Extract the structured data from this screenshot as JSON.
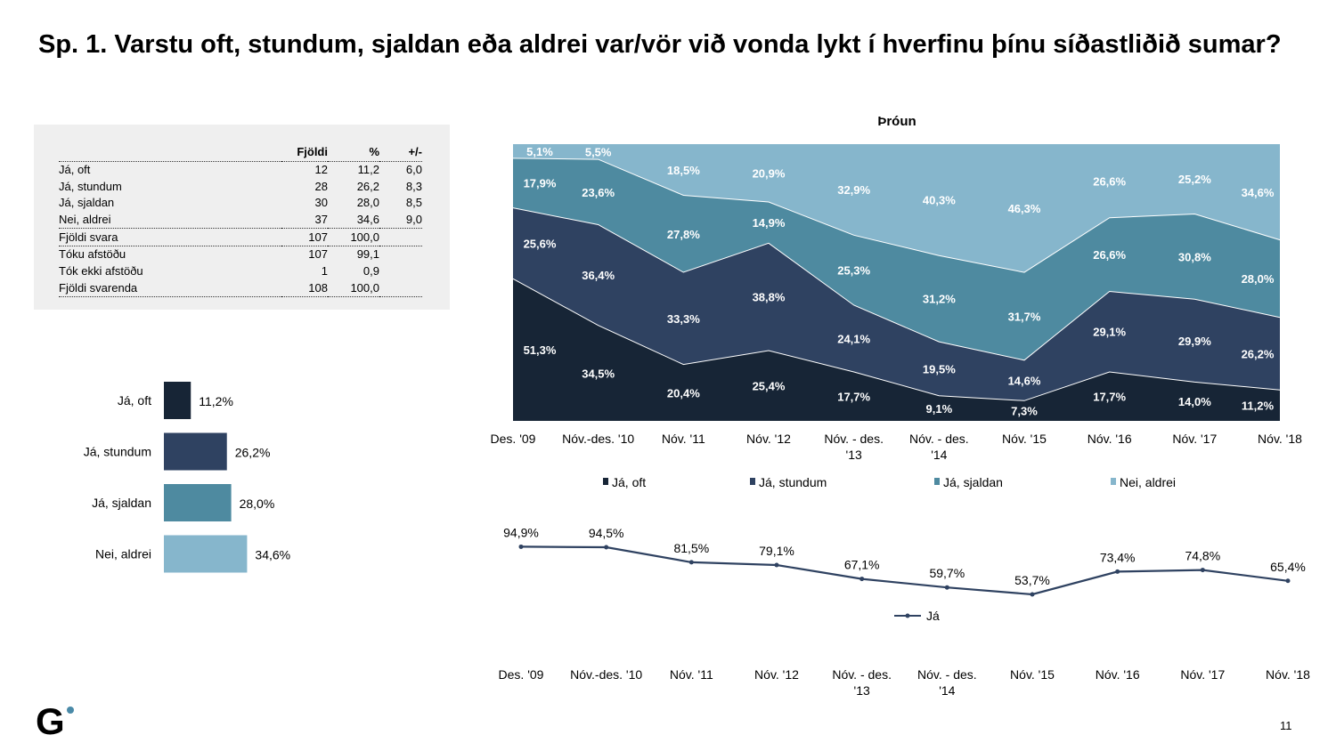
{
  "title": "Sp. 1. Varstu oft, stundum, sjaldan eða aldrei var/vör við vonda lykt í hverfinu þínu síðastliðið sumar?",
  "page_number": "11",
  "logo_text": "G",
  "colors": {
    "ja_oft": "#172536",
    "ja_stundum": "#2f4261",
    "ja_sjaldan": "#4e8aa0",
    "nei_aldrei": "#86b6cc",
    "line": "#2f4261"
  },
  "table": {
    "headers": [
      "",
      "Fjöldi",
      "%",
      "+/-"
    ],
    "rows": [
      [
        "Já, oft",
        "12",
        "11,2",
        "6,0"
      ],
      [
        "Já, stundum",
        "28",
        "26,2",
        "8,3"
      ],
      [
        "Já, sjaldan",
        "30",
        "28,0",
        "8,5"
      ],
      [
        "Nei, aldrei",
        "37",
        "34,6",
        "9,0"
      ],
      [
        "Fjöldi svara",
        "107",
        "100,0",
        ""
      ],
      [
        "Tóku afstöðu",
        "107",
        "99,1",
        ""
      ],
      [
        "Tók ekki afstöðu",
        "1",
        "0,9",
        ""
      ],
      [
        "Fjöldi svarenda",
        "108",
        "100,0",
        ""
      ]
    ]
  },
  "chart_data": [
    {
      "type": "bar",
      "orientation": "horizontal",
      "categories": [
        "Já, oft",
        "Já, stundum",
        "Já, sjaldan",
        "Nei, aldrei"
      ],
      "values": [
        11.2,
        26.2,
        28.0,
        34.6
      ],
      "labels": [
        "11,2%",
        "26,2%",
        "28,0%",
        "34,6%"
      ]
    },
    {
      "type": "area",
      "stacked": "percent",
      "title": "Þróun",
      "categories": [
        "Des. '09",
        "Nóv.-des. '10",
        "Nóv. '11",
        "Nóv. '12",
        "Nóv. - des. '13",
        "Nóv. - des. '14",
        "Nóv. '15",
        "Nóv. '16",
        "Nóv. '17",
        "Nóv. '18"
      ],
      "legend_position": "bottom",
      "series": [
        {
          "name": "Já, oft",
          "values": [
            51.3,
            34.5,
            20.4,
            25.4,
            17.7,
            9.1,
            7.3,
            17.7,
            14.0,
            11.2
          ],
          "labels": [
            "51,3%",
            "34,5%",
            "20,4%",
            "25,4%",
            "17,7%",
            "9,1%",
            "7,3%",
            "17,7%",
            "14,0%",
            "11,2%"
          ]
        },
        {
          "name": "Já, stundum",
          "values": [
            25.6,
            36.4,
            33.3,
            38.8,
            24.1,
            19.5,
            14.6,
            29.1,
            29.9,
            26.2
          ],
          "labels": [
            "25,6%",
            "36,4%",
            "33,3%",
            "38,8%",
            "24,1%",
            "19,5%",
            "14,6%",
            "29,1%",
            "29,9%",
            "26,2%"
          ]
        },
        {
          "name": "Já, sjaldan",
          "values": [
            17.9,
            23.6,
            27.8,
            14.9,
            25.3,
            31.2,
            31.7,
            26.6,
            30.8,
            28.0
          ],
          "labels": [
            "17,9%",
            "23,6%",
            "27,8%",
            "14,9%",
            "25,3%",
            "31,2%",
            "31,7%",
            "26,6%",
            "30,8%",
            "28,0%"
          ]
        },
        {
          "name": "Nei, aldrei",
          "values": [
            5.1,
            5.5,
            18.5,
            20.9,
            32.9,
            40.3,
            46.3,
            26.6,
            25.2,
            34.6
          ],
          "labels": [
            "5,1%",
            "5,5%",
            "18,5%",
            "20,9%",
            "32,9%",
            "40,3%",
            "46,3%",
            "26,6%",
            "25,2%",
            "34,6%"
          ]
        }
      ]
    },
    {
      "type": "line",
      "categories": [
        "Des. '09",
        "Nóv.-des. '10",
        "Nóv. '11",
        "Nóv. '12",
        "Nóv. - des. '13",
        "Nóv. - des. '14",
        "Nóv. '15",
        "Nóv. '16",
        "Nóv. '17",
        "Nóv. '18"
      ],
      "legend_position": "bottom",
      "series": [
        {
          "name": "Já",
          "values": [
            94.9,
            94.5,
            81.5,
            79.1,
            67.1,
            59.7,
            53.7,
            73.4,
            74.8,
            65.4
          ],
          "labels": [
            "94,9%",
            "94,5%",
            "81,5%",
            "79,1%",
            "67,1%",
            "59,7%",
            "53,7%",
            "73,4%",
            "74,8%",
            "65,4%"
          ]
        }
      ]
    }
  ]
}
